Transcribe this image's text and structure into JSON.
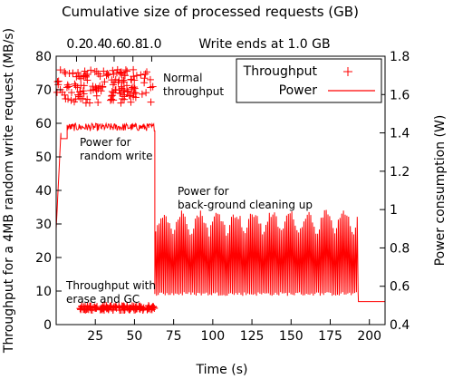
{
  "chart_data": {
    "type": "line",
    "title": "Cumulative size of processed requests (GB)",
    "xlabel": "Time (s)",
    "ylabel": "Throughput for a 4MB random write request (MB/s)",
    "y2label": "Power consumption (W)",
    "xlim": [
      0,
      210
    ],
    "ylim": [
      0,
      80
    ],
    "y2lim": [
      0.4,
      1.8
    ],
    "xticks": [
      "25",
      "50",
      "75",
      "100",
      "125",
      "150",
      "175",
      "200"
    ],
    "yticks": [
      "0",
      "10",
      "20",
      "30",
      "40",
      "50",
      "60",
      "70",
      "80"
    ],
    "y2ticks": [
      "0.4",
      "0.6",
      "0.8",
      "1",
      "1.2",
      "1.4",
      "1.6",
      "1.8"
    ],
    "top_axis": {
      "ticks": [
        {
          "x": 13,
          "label": "0.2"
        },
        {
          "x": 25,
          "label": "0.4"
        },
        {
          "x": 37,
          "label": "0.6"
        },
        {
          "x": 49,
          "label": "0.8"
        },
        {
          "x": 61,
          "label": "1.0"
        }
      ],
      "end_text": "Write ends at 1.0 GB"
    },
    "legend": {
      "position": "top-right",
      "entries": [
        "Throughput",
        "Power"
      ]
    },
    "annotations": [
      {
        "line1": "Normal",
        "line2": "throughput"
      },
      {
        "line1": "Power for",
        "line2": "random write"
      },
      {
        "line1": "Power for",
        "line2": "back-ground cleaning up"
      },
      {
        "line1": "Throughput with",
        "line2": "erase and GC"
      }
    ],
    "series": [
      {
        "name": "Throughput",
        "axis": "left",
        "style": "points",
        "phases": [
          {
            "x_range": [
              0,
              62
            ],
            "y_center": 71,
            "y_spread": 5
          },
          {
            "x_range": [
              15,
              63
            ],
            "y_center": 5,
            "y_spread": 0.7
          }
        ]
      },
      {
        "name": "Power",
        "axis": "right",
        "style": "line",
        "segments": [
          {
            "x_range": [
              0,
              3
            ],
            "y_values": [
              0.9,
              1.4
            ]
          },
          {
            "x_range": [
              3,
              7
            ],
            "y_values": [
              1.37
            ]
          },
          {
            "x_range": [
              7,
              63
            ],
            "y_values": [
              1.41,
              1.45
            ]
          },
          {
            "x_range": [
              63,
              193
            ],
            "y_values": [
              0.55,
              1.0
            ],
            "oscillating": true
          },
          {
            "x_range": [
              193,
              210
            ],
            "y_values": [
              0.52
            ]
          }
        ]
      }
    ],
    "colors": {
      "series": "#ff0000",
      "axes": "#000000"
    }
  }
}
